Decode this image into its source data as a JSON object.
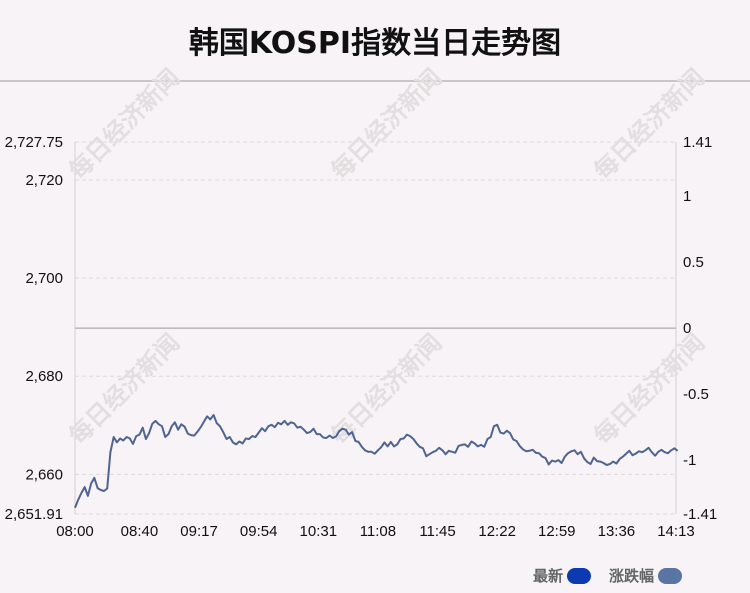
{
  "title": "韩国KOSPI指数当日走势图",
  "watermark": "每日经济新闻",
  "legend": [
    {
      "label": "最新",
      "color": "#0c3bb1"
    },
    {
      "label": "涨跌幅",
      "color": "#5a74a3"
    }
  ],
  "chart_data": {
    "type": "line",
    "title": "韩国KOSPI指数当日走势图",
    "line_color": "#4f6491",
    "grid": true,
    "x_ticks": [
      "08:00",
      "08:40",
      "09:17",
      "09:54",
      "10:31",
      "11:08",
      "11:45",
      "12:22",
      "12:59",
      "13:36",
      "14:13"
    ],
    "y_left": {
      "range": [
        2651.91,
        2727.75
      ],
      "tick_values": [
        2651.91,
        2660,
        2680,
        2700,
        2720,
        2727.75
      ],
      "tick_labels": [
        "2,651.91",
        "2,660",
        "2,680",
        "2,700",
        "2,720",
        "2,727.75"
      ]
    },
    "y_right": {
      "range": [
        -1.41,
        1.41
      ],
      "tick_values": [
        -1.41,
        -1,
        -0.5,
        0,
        0.5,
        1,
        1.41
      ],
      "tick_labels": [
        "-1.41",
        "-1",
        "-0.5",
        "0",
        "0.5",
        "1",
        "1.41"
      ]
    },
    "reference_value": 2689.8,
    "series": [
      {
        "x": [
          "08:00",
          "08:02",
          "08:04",
          "08:06",
          "08:08",
          "08:10",
          "08:12",
          "08:14",
          "08:16",
          "08:18",
          "08:20",
          "08:22",
          "08:24",
          "08:26",
          "08:28",
          "08:30",
          "08:32",
          "08:34",
          "08:36",
          "08:38",
          "08:40",
          "08:42",
          "08:44",
          "08:46",
          "08:48",
          "08:50",
          "08:52",
          "08:54",
          "08:56",
          "08:58",
          "09:00",
          "09:02",
          "09:04",
          "09:06",
          "09:08",
          "09:10",
          "09:12",
          "09:14",
          "09:16",
          "09:18",
          "09:20",
          "09:22",
          "09:24",
          "09:26",
          "09:28",
          "09:30",
          "09:32",
          "09:34",
          "09:36",
          "09:38",
          "09:40",
          "09:42",
          "09:44",
          "09:46",
          "09:48",
          "09:50",
          "09:52",
          "09:54",
          "09:56",
          "09:58",
          "10:00",
          "10:02",
          "10:04",
          "10:06",
          "10:08",
          "10:10",
          "10:12",
          "10:14",
          "10:16",
          "10:18",
          "10:20",
          "10:22",
          "10:24",
          "10:26",
          "10:28",
          "10:30",
          "10:32",
          "10:34",
          "10:36",
          "10:38",
          "10:40",
          "10:42",
          "10:44",
          "10:46",
          "10:48",
          "10:50",
          "10:52",
          "10:54",
          "10:56",
          "10:58",
          "11:00",
          "11:02",
          "11:04",
          "11:06",
          "11:08",
          "11:10",
          "11:12",
          "11:14",
          "11:16",
          "11:18",
          "11:20",
          "11:22",
          "11:24",
          "11:26",
          "11:28",
          "11:30",
          "11:32",
          "11:34",
          "11:36",
          "11:38",
          "11:40",
          "11:42",
          "11:44",
          "11:46",
          "11:48",
          "11:50",
          "11:52",
          "11:54",
          "11:56",
          "11:58",
          "12:00",
          "12:02",
          "12:04",
          "12:06",
          "12:08",
          "12:10",
          "12:12",
          "12:14",
          "12:16",
          "12:18",
          "12:20",
          "12:22",
          "12:24",
          "12:26",
          "12:28",
          "12:30",
          "12:32",
          "12:34",
          "12:36",
          "12:38",
          "12:40",
          "12:42",
          "12:44",
          "12:46",
          "12:48",
          "12:50",
          "12:52",
          "12:54",
          "12:56",
          "12:58",
          "13:00",
          "13:02",
          "13:04",
          "13:06",
          "13:08",
          "13:10",
          "13:12",
          "13:14",
          "13:16",
          "13:18",
          "13:20",
          "13:22",
          "13:24",
          "13:26",
          "13:28",
          "13:30",
          "13:32",
          "13:34",
          "13:36",
          "13:38",
          "13:40",
          "13:42",
          "13:44",
          "13:46",
          "13:48",
          "13:50",
          "13:52",
          "13:54",
          "13:56",
          "13:58",
          "14:00",
          "14:02",
          "14:04",
          "14:06",
          "14:08",
          "14:10",
          "14:12",
          "14:14"
        ],
        "values": [
          2653.2,
          2654.8,
          2656.2,
          2657.4,
          2655.6,
          2658.1,
          2659.3,
          2657.2,
          2656.8,
          2656.6,
          2657.1,
          2664.5,
          2667.6,
          2666.5,
          2667.3,
          2666.9,
          2667.6,
          2667.3,
          2666.2,
          2667.8,
          2668.1,
          2669.5,
          2667.2,
          2668.4,
          2670.3,
          2670.9,
          2670.2,
          2669.8,
          2667.6,
          2668.2,
          2669.8,
          2670.6,
          2669.1,
          2670.2,
          2669.7,
          2668.3,
          2668.0,
          2667.9,
          2668.7,
          2669.6,
          2670.7,
          2671.8,
          2671.2,
          2672.1,
          2670.4,
          2669.8,
          2668.6,
          2667.2,
          2667.6,
          2666.5,
          2666.1,
          2666.7,
          2666.3,
          2667.3,
          2667.2,
          2667.8,
          2667.6,
          2668.5,
          2669.4,
          2668.8,
          2669.8,
          2670.1,
          2669.6,
          2670.5,
          2670.2,
          2670.9,
          2670.1,
          2670.6,
          2670.4,
          2669.5,
          2669.7,
          2669.1,
          2668.4,
          2668.6,
          2669.3,
          2668.2,
          2668.2,
          2667.5,
          2667.4,
          2667.9,
          2667.4,
          2667.7,
          2668.8,
          2669.3,
          2669.1,
          2668.1,
          2668.6,
          2666.8,
          2666.6,
          2665.6,
          2664.9,
          2664.6,
          2664.6,
          2664.2,
          2664.9,
          2665.5,
          2666.5,
          2665.7,
          2666.6,
          2665.7,
          2666.1,
          2667.2,
          2667.3,
          2668.1,
          2667.8,
          2667.2,
          2666.3,
          2665.6,
          2665.3,
          2663.7,
          2664.1,
          2664.5,
          2664.8,
          2665.4,
          2664.9,
          2664.1,
          2664.8,
          2664.6,
          2664.4,
          2665.8,
          2666.0,
          2666.1,
          2665.6,
          2666.7,
          2666.3,
          2665.7,
          2666.0,
          2665.6,
          2667.2,
          2667.6,
          2669.8,
          2670.1,
          2668.5,
          2668.3,
          2668.9,
          2668.4,
          2667.1,
          2666.8,
          2665.8,
          2665.1,
          2664.7,
          2664.8,
          2665.0,
          2664.4,
          2664.3,
          2663.6,
          2663.3,
          2662.0,
          2662.8,
          2662.6,
          2662.9,
          2662.3,
          2663.6,
          2664.3,
          2664.7,
          2664.9,
          2664.1,
          2664.6,
          2663.2,
          2662.5,
          2662.1,
          2663.4,
          2662.7,
          2662.6,
          2662.3,
          2661.9,
          2662.1,
          2662.6,
          2662.2,
          2663.1,
          2663.6,
          2664.2,
          2664.8,
          2663.9,
          2664.2,
          2664.7,
          2664.5,
          2664.9,
          2665.4,
          2664.5,
          2663.8,
          2664.6,
          2665.0,
          2664.5,
          2664.3,
          2664.9,
          2665.3,
          2664.8
        ]
      }
    ]
  }
}
